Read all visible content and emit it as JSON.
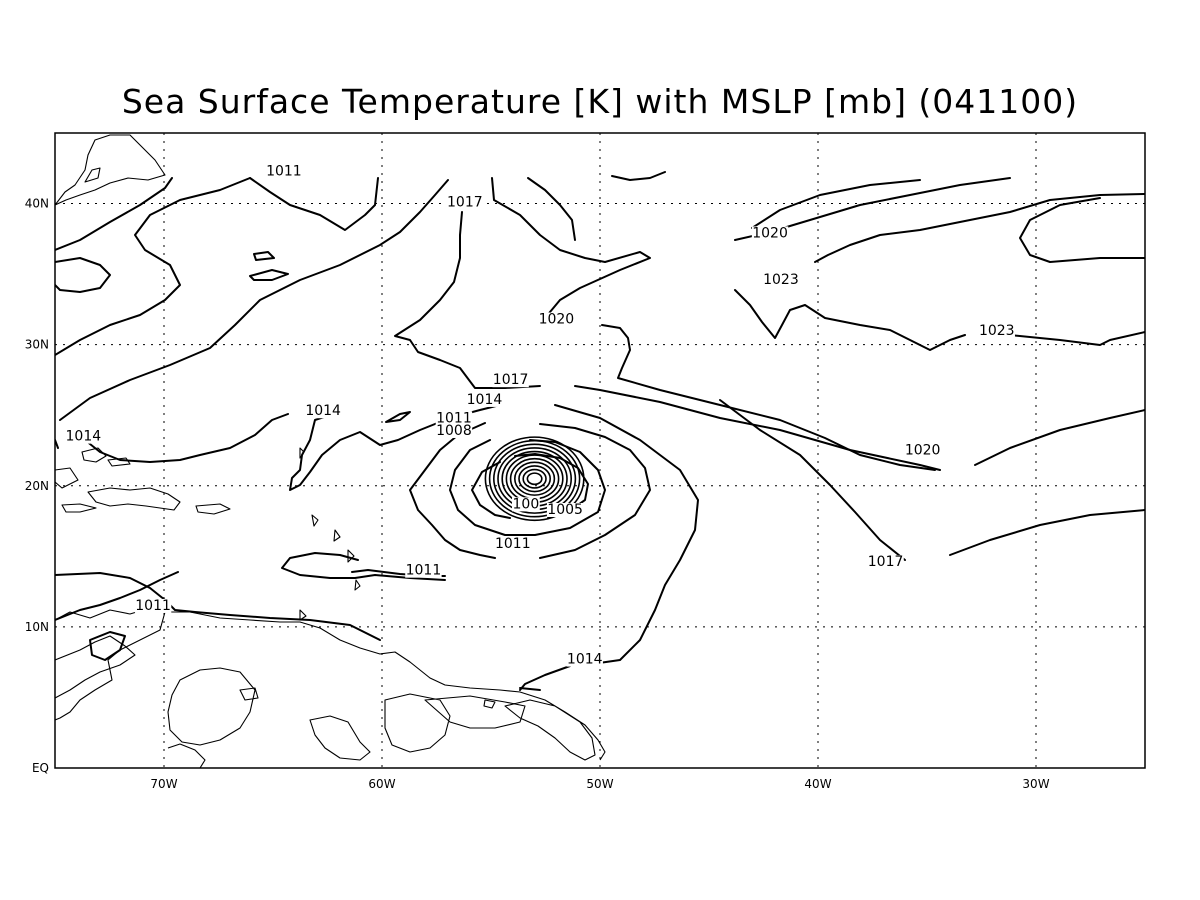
{
  "title": "Sea Surface Temperature [K] with MSLP [mb] (041100)",
  "axes": {
    "x_ticks": [
      "70W",
      "60W",
      "50W",
      "40W",
      "30W"
    ],
    "y_ticks": [
      "EQ",
      "10N",
      "20N",
      "30N",
      "40N"
    ]
  },
  "map_data": {
    "type": "contour_map",
    "variable": "MSLP",
    "units": "mb",
    "lon_range": [
      -75,
      -25
    ],
    "lat_range": [
      0,
      45
    ],
    "grid": true,
    "low_center": {
      "lon": -53,
      "lat": 20.5
    },
    "contour_labels": [
      {
        "text": "1011",
        "lon": -70.5,
        "lat": 11.2
      },
      {
        "text": "1011",
        "lon": -64.5,
        "lat": 42
      },
      {
        "text": "1017",
        "lon": -56.2,
        "lat": 39.8
      },
      {
        "text": "1020",
        "lon": -52,
        "lat": 31.5
      },
      {
        "text": "1020",
        "lon": -42.2,
        "lat": 37.6
      },
      {
        "text": "1023",
        "lon": -41.7,
        "lat": 34.3
      },
      {
        "text": "1023",
        "lon": -31.8,
        "lat": 30.7
      },
      {
        "text": "1017",
        "lon": -54.1,
        "lat": 27.2
      },
      {
        "text": "1014",
        "lon": -62.7,
        "lat": 25
      },
      {
        "text": "1014",
        "lon": -73.7,
        "lat": 23.2
      },
      {
        "text": "1014",
        "lon": -55.3,
        "lat": 25.8
      },
      {
        "text": "1011",
        "lon": -56.7,
        "lat": 24.5
      },
      {
        "text": "1008",
        "lon": -56.7,
        "lat": 23.6
      },
      {
        "text": "1005",
        "lon": -51.6,
        "lat": 18
      },
      {
        "text": "100",
        "lon": -53.4,
        "lat": 18.4
      },
      {
        "text": "1011",
        "lon": -54,
        "lat": 15.6
      },
      {
        "text": "1011",
        "lon": -58.1,
        "lat": 13.7
      },
      {
        "text": "1020",
        "lon": -35.2,
        "lat": 22.2
      },
      {
        "text": "1017",
        "lon": -36.9,
        "lat": 14.3
      },
      {
        "text": "1014",
        "lon": -50.7,
        "lat": 7.4
      }
    ]
  }
}
